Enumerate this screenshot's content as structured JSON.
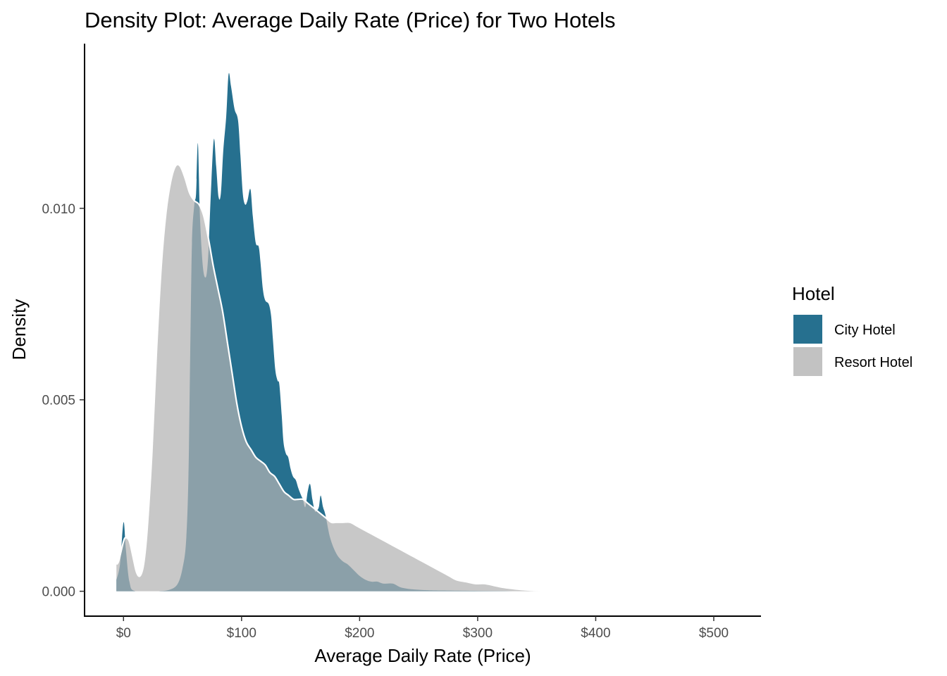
{
  "chart_data": {
    "type": "area",
    "title": "Density Plot: Average Daily Rate (Price) for Two Hotels",
    "xlabel": "Average Daily Rate (Price)",
    "ylabel": "Density",
    "xlim": [
      -33,
      540
    ],
    "ylim": [
      -0.00065,
      0.0143
    ],
    "x_ticks": [
      0,
      100,
      200,
      300,
      400,
      500
    ],
    "x_tick_labels": [
      "$0",
      "$100",
      "$200",
      "$300",
      "$400",
      "$500"
    ],
    "y_ticks": [
      0,
      0.005,
      0.01
    ],
    "y_tick_labels": [
      "0.000",
      "0.005",
      "0.010"
    ],
    "grid": false,
    "legend": {
      "title": "Hotel",
      "position": "right",
      "entries": [
        "City Hotel",
        "Resort Hotel"
      ]
    },
    "series": [
      {
        "name": "City Hotel",
        "color": "#26708f",
        "points": [
          [
            -6,
            0.0003
          ],
          [
            -3,
            0.0007
          ],
          [
            0,
            0.0018
          ],
          [
            2,
            0.0011
          ],
          [
            5,
            0.00025
          ],
          [
            10,
            0.0
          ],
          [
            30,
            0.0
          ],
          [
            40,
            5e-05
          ],
          [
            46,
            0.0002
          ],
          [
            50,
            0.0006
          ],
          [
            53,
            0.0013
          ],
          [
            55,
            0.003
          ],
          [
            56.5,
            0.0062
          ],
          [
            58,
            0.0091
          ],
          [
            60,
            0.0101
          ],
          [
            61.5,
            0.0104
          ],
          [
            63,
            0.0117
          ],
          [
            64.5,
            0.01
          ],
          [
            66,
            0.009
          ],
          [
            67.5,
            0.0084
          ],
          [
            69,
            0.0082
          ],
          [
            70.5,
            0.0083
          ],
          [
            72,
            0.0089
          ],
          [
            74,
            0.0104
          ],
          [
            76.5,
            0.0118
          ],
          [
            78.5,
            0.0111
          ],
          [
            80.5,
            0.0103
          ],
          [
            82.5,
            0.0104
          ],
          [
            84.5,
            0.0115
          ],
          [
            87,
            0.0124
          ],
          [
            89,
            0.0135
          ],
          [
            91,
            0.0132
          ],
          [
            94,
            0.0126
          ],
          [
            97,
            0.0123
          ],
          [
            99,
            0.0114
          ],
          [
            101,
            0.0104
          ],
          [
            103,
            0.0101
          ],
          [
            105,
            0.0102
          ],
          [
            107.5,
            0.0105
          ],
          [
            109.5,
            0.0098
          ],
          [
            112,
            0.0091
          ],
          [
            114.5,
            0.009
          ],
          [
            116,
            0.0086
          ],
          [
            118,
            0.0079
          ],
          [
            120,
            0.0076
          ],
          [
            123,
            0.0075
          ],
          [
            125,
            0.0072
          ],
          [
            126.5,
            0.0066
          ],
          [
            128.5,
            0.0058
          ],
          [
            130.5,
            0.0055
          ],
          [
            132,
            0.0054
          ],
          [
            134,
            0.0046
          ],
          [
            135.5,
            0.0039
          ],
          [
            137.5,
            0.0036
          ],
          [
            139.5,
            0.0035
          ],
          [
            141.5,
            0.0032
          ],
          [
            143.5,
            0.003
          ],
          [
            146,
            0.0029
          ],
          [
            148,
            0.0027
          ],
          [
            150.5,
            0.0025
          ],
          [
            152,
            0.0024
          ],
          [
            154,
            0.0022
          ],
          [
            156,
            0.0026
          ],
          [
            158,
            0.0028
          ],
          [
            160,
            0.0024
          ],
          [
            162,
            0.0021
          ],
          [
            163.5,
            0.0021
          ],
          [
            165.5,
            0.0022
          ],
          [
            167,
            0.0025
          ],
          [
            169,
            0.0022
          ],
          [
            171,
            0.002
          ],
          [
            175,
            0.0014
          ],
          [
            180,
            0.001
          ],
          [
            185,
            0.0008
          ],
          [
            190,
            0.0007
          ],
          [
            195,
            0.00055
          ],
          [
            200,
            0.0004
          ],
          [
            205,
            0.0003
          ],
          [
            210,
            0.00025
          ],
          [
            215,
            0.00025
          ],
          [
            220,
            0.0002
          ],
          [
            228,
            0.0002
          ],
          [
            235,
            0.0001
          ],
          [
            245,
            5e-05
          ],
          [
            255,
            3e-05
          ],
          [
            270,
            2e-05
          ],
          [
            300,
            1e-05
          ],
          [
            330,
            0.0
          ],
          [
            360,
            0.0
          ]
        ]
      },
      {
        "name": "Resort Hotel",
        "color": "#b3b3b3",
        "points": [
          [
            -6,
            0.0007
          ],
          [
            -4,
            0.0008
          ],
          [
            0,
            0.0013
          ],
          [
            2,
            0.0014
          ],
          [
            5,
            0.0013
          ],
          [
            8,
            0.0009
          ],
          [
            11,
            0.0005
          ],
          [
            14,
            0.0004
          ],
          [
            17,
            0.0007
          ],
          [
            20,
            0.0016
          ],
          [
            24,
            0.0036
          ],
          [
            28,
            0.0063
          ],
          [
            32,
            0.0085
          ],
          [
            36,
            0.0099
          ],
          [
            40,
            0.0107
          ],
          [
            44,
            0.0111
          ],
          [
            48,
            0.0111
          ],
          [
            52,
            0.0108
          ],
          [
            56,
            0.0104
          ],
          [
            60,
            0.0102
          ],
          [
            64,
            0.0101
          ],
          [
            68,
            0.0098
          ],
          [
            72,
            0.0092
          ],
          [
            76,
            0.0085
          ],
          [
            80,
            0.0079
          ],
          [
            84,
            0.0073
          ],
          [
            88,
            0.0065
          ],
          [
            92,
            0.0057
          ],
          [
            96,
            0.0049
          ],
          [
            100,
            0.0043
          ],
          [
            104,
            0.0039
          ],
          [
            108,
            0.0037
          ],
          [
            112,
            0.0035
          ],
          [
            116,
            0.0034
          ],
          [
            120,
            0.0033
          ],
          [
            124,
            0.0031
          ],
          [
            128,
            0.003
          ],
          [
            132,
            0.0028
          ],
          [
            136,
            0.0026
          ],
          [
            140,
            0.0025
          ],
          [
            144,
            0.0024
          ],
          [
            148,
            0.0024
          ],
          [
            152,
            0.0024
          ],
          [
            156,
            0.0023
          ],
          [
            160,
            0.0022
          ],
          [
            164,
            0.0021
          ],
          [
            168,
            0.002
          ],
          [
            172,
            0.0019
          ],
          [
            176,
            0.0018
          ],
          [
            180,
            0.0018
          ],
          [
            186,
            0.0018
          ],
          [
            192,
            0.0018
          ],
          [
            198,
            0.0017
          ],
          [
            204,
            0.0016
          ],
          [
            210,
            0.0015
          ],
          [
            216,
            0.0014
          ],
          [
            222,
            0.0013
          ],
          [
            228,
            0.0012
          ],
          [
            234,
            0.0011
          ],
          [
            240,
            0.001
          ],
          [
            246,
            0.0009
          ],
          [
            252,
            0.0008
          ],
          [
            258,
            0.0007
          ],
          [
            264,
            0.0006
          ],
          [
            270,
            0.0005
          ],
          [
            276,
            0.0004
          ],
          [
            282,
            0.0003
          ],
          [
            290,
            0.00025
          ],
          [
            298,
            0.0002
          ],
          [
            306,
            0.0002
          ],
          [
            314,
            0.00015
          ],
          [
            322,
            0.0001
          ],
          [
            332,
            6e-05
          ],
          [
            344,
            3e-05
          ],
          [
            356,
            1e-05
          ],
          [
            362,
            0.0
          ]
        ]
      }
    ]
  }
}
